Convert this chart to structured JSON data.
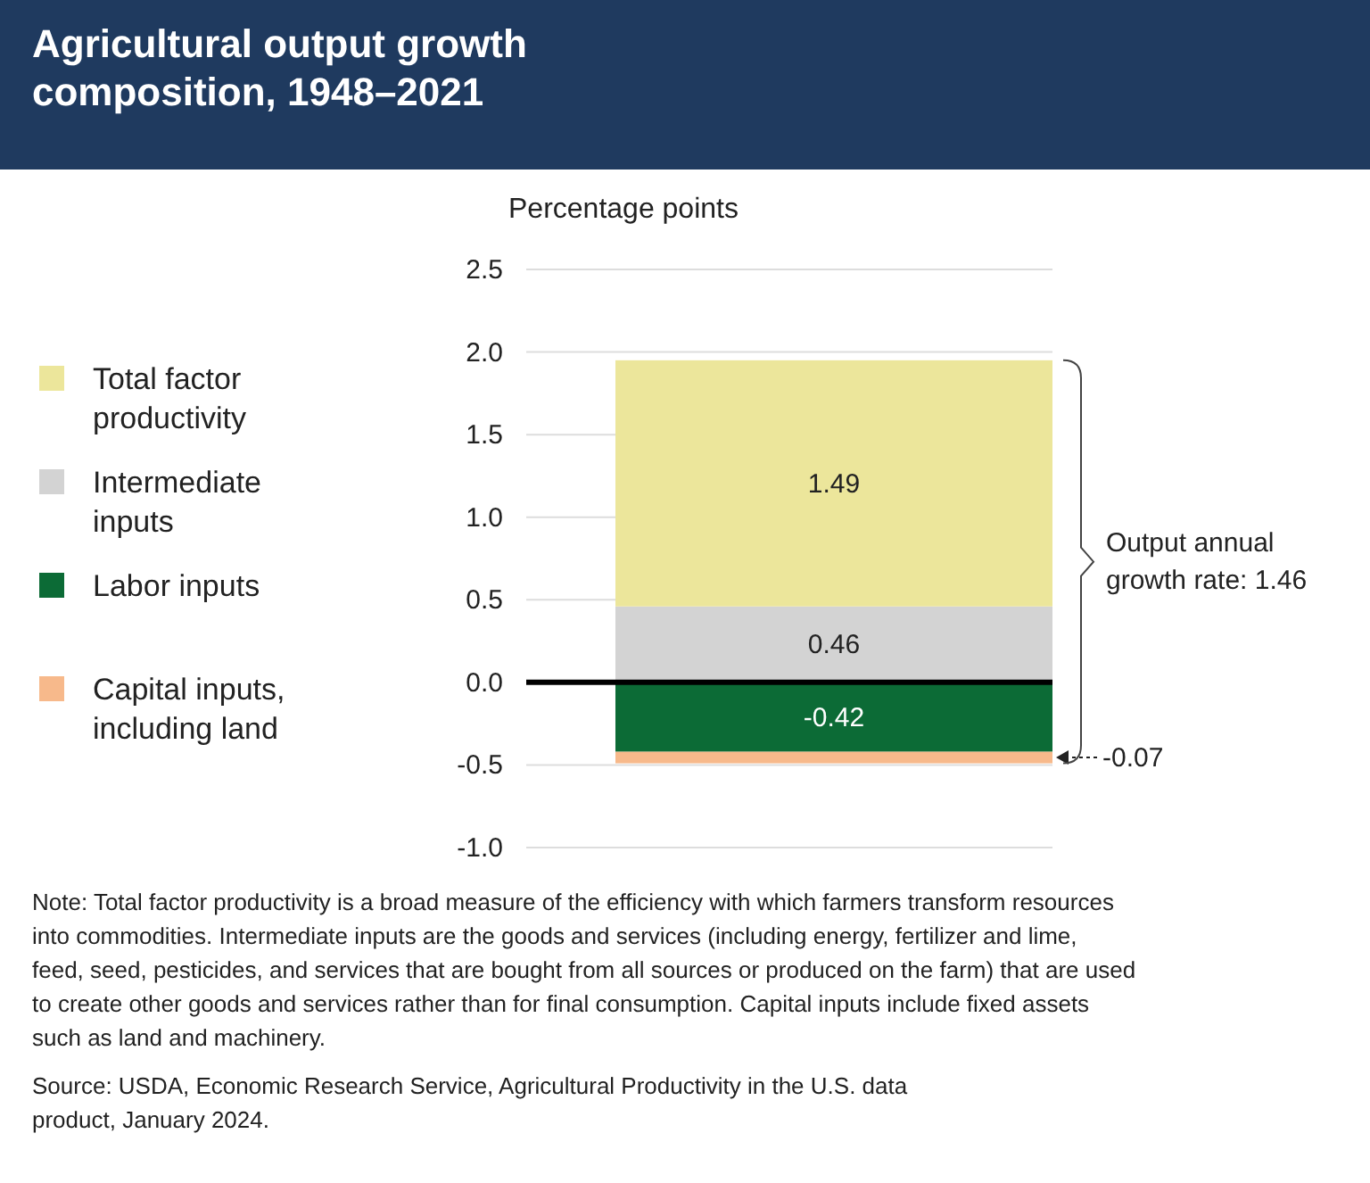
{
  "chart_data": {
    "type": "bar",
    "title": "Agricultural output growth composition, 1948–2021",
    "ylabel": "Percentage points",
    "categories": [
      null
    ],
    "stacked": true,
    "series": [
      {
        "name": "Intermediate inputs",
        "color": "#d3d3d3",
        "values": [
          0.46
        ]
      },
      {
        "name": "Total factor productivity",
        "color": "#ece69b",
        "values": [
          1.49
        ]
      },
      {
        "name": "Labor inputs",
        "color": "#0c6b36",
        "values": [
          -0.42
        ]
      },
      {
        "name": "Capital inputs, including land",
        "color": "#f7b98b",
        "values": [
          -0.07
        ]
      }
    ],
    "data_labels": true,
    "ylim": [
      -1,
      2.5
    ],
    "yticks": [
      {
        "value": -1,
        "label": "-1.0"
      },
      {
        "value": -0.5,
        "label": "-0.5"
      },
      {
        "value": 0,
        "label": "0.0"
      },
      {
        "value": 0.5,
        "label": "0.5"
      },
      {
        "value": 1,
        "label": "1.0"
      },
      {
        "value": 1.5,
        "label": "1.5"
      },
      {
        "value": 2,
        "label": "2.0"
      },
      {
        "value": 2.5,
        "label": "2.5"
      }
    ],
    "grid": "y",
    "legend": "left",
    "annotations": [
      "Output annual growth rate: 1.46",
      "Note: Total factor productivity is a broad measure of the efficiency with which farmers transform resources into commodities. Intermediate inputs are the goods and services (including energy, fertilizer and lime, feed, seed, pesticides, and services that are bought from all sources or produced on the farm) that are used to create other goods and services rather than for final consumption. Capital inputs include fixed assets such as land and machinery.",
      "Source: USDA, Economic Research Service, Agricultural Productivity in the U.S. data product, January 2024."
    ]
  }
}
